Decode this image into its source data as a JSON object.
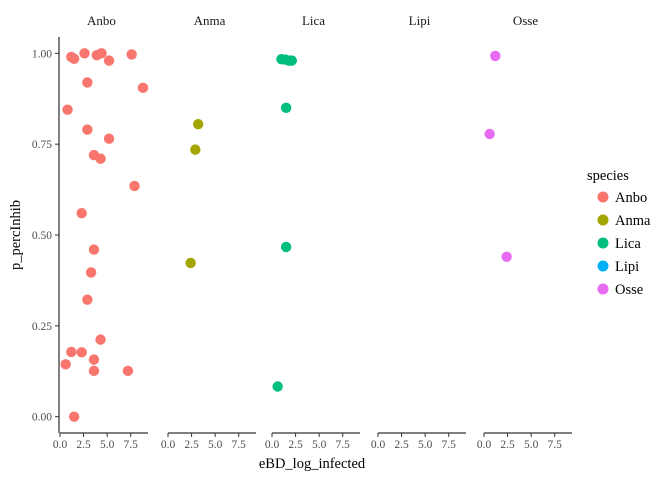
{
  "chart_data": {
    "type": "scatter",
    "xlabel": "eBD_log_infected",
    "ylabel": "p_percInhib",
    "xlim": [
      0,
      8.8
    ],
    "ylim": [
      -0.045,
      1.045
    ],
    "x_ticks": [
      0,
      2.5,
      5,
      7.5
    ],
    "x_tick_labels": [
      "0.0",
      "2.5",
      "5.0",
      "7.5"
    ],
    "y_ticks": [
      0,
      0.25,
      0.5,
      0.75,
      1
    ],
    "y_tick_labels": [
      "0.00",
      "0.25",
      "0.50",
      "0.75",
      "1.00"
    ],
    "grid": false,
    "legend": {
      "title": "species",
      "position": "right"
    },
    "facets": [
      "Anbo",
      "Anma",
      "Lica",
      "Lipi",
      "Osse"
    ],
    "series": [
      {
        "name": "Anbo",
        "color": "#F8766D",
        "points": [
          [
            1.2,
            0.99
          ],
          [
            1.5,
            0.985
          ],
          [
            2.6,
            1.0
          ],
          [
            3.9,
            0.995
          ],
          [
            4.4,
            1.0
          ],
          [
            5.2,
            0.98
          ],
          [
            7.6,
            0.997
          ],
          [
            8.8,
            0.905
          ],
          [
            2.9,
            0.92
          ],
          [
            0.8,
            0.845
          ],
          [
            2.9,
            0.79
          ],
          [
            5.2,
            0.765
          ],
          [
            3.6,
            0.72
          ],
          [
            4.3,
            0.71
          ],
          [
            7.9,
            0.635
          ],
          [
            2.3,
            0.56
          ],
          [
            3.6,
            0.46
          ],
          [
            3.3,
            0.397
          ],
          [
            2.9,
            0.322
          ],
          [
            4.3,
            0.212
          ],
          [
            1.2,
            0.178
          ],
          [
            2.3,
            0.177
          ],
          [
            3.6,
            0.157
          ],
          [
            3.6,
            0.126
          ],
          [
            7.2,
            0.126
          ],
          [
            0.6,
            0.144
          ],
          [
            1.5,
            0.0
          ]
        ]
      },
      {
        "name": "Anma",
        "color": "#A3A500",
        "points": [
          [
            3.2,
            0.805
          ],
          [
            2.9,
            0.735
          ],
          [
            2.4,
            0.423
          ]
        ]
      },
      {
        "name": "Lica",
        "color": "#00BF7D",
        "points": [
          [
            1.0,
            0.984
          ],
          [
            1.4,
            0.983
          ],
          [
            1.8,
            0.98
          ],
          [
            2.1,
            0.98
          ],
          [
            1.5,
            0.85
          ],
          [
            1.5,
            0.467
          ],
          [
            0.6,
            0.083
          ]
        ]
      },
      {
        "name": "Lipi",
        "color": "#00B0F6",
        "points": []
      },
      {
        "name": "Osse",
        "color": "#E76BF3",
        "points": [
          [
            1.2,
            0.993
          ],
          [
            0.6,
            0.778
          ],
          [
            2.4,
            0.44
          ]
        ]
      }
    ]
  }
}
